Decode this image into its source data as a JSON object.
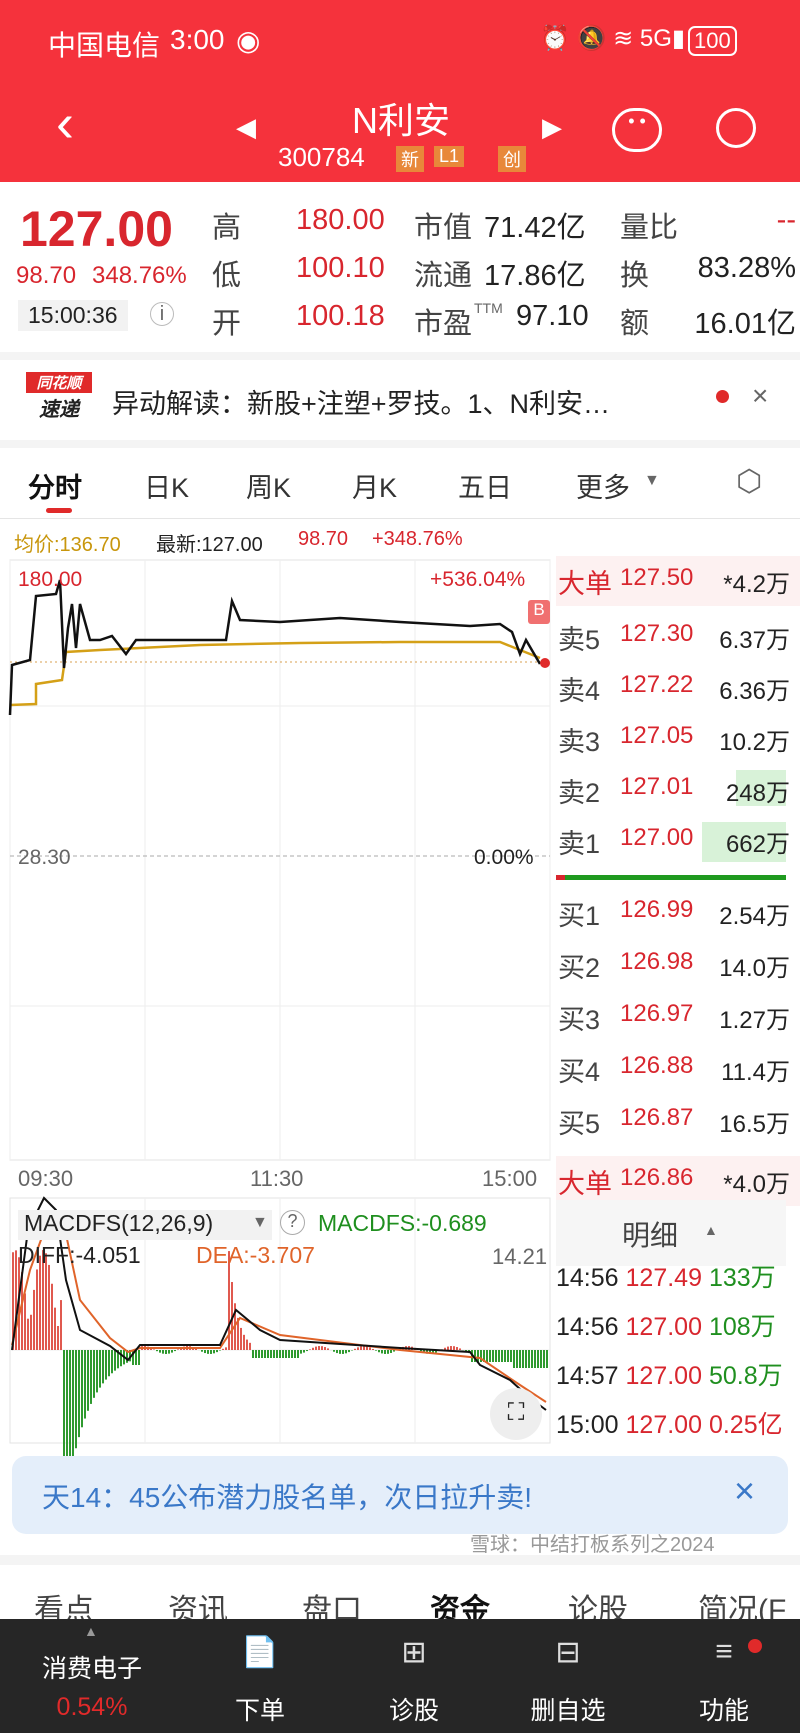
{
  "status": {
    "carrier": "中国电信",
    "time": "3:00",
    "battery": "100"
  },
  "header": {
    "name": "N利安",
    "code": "300784",
    "badges": [
      "新",
      "L1",
      "创"
    ]
  },
  "quote": {
    "price": "127.00",
    "change": "98.70",
    "change_pct": "348.76%",
    "time": "15:00:36",
    "rows": [
      {
        "l1": "高",
        "v1": "180.00",
        "l2": "市值",
        "v2": "71.42亿",
        "l3": "量比",
        "v3": "--"
      },
      {
        "l1": "低",
        "v1": "100.10",
        "l2": "流通",
        "v2": "17.86亿",
        "l3": "换",
        "v3": "83.28%"
      },
      {
        "l1": "开",
        "v1": "100.18",
        "l2": "市盈",
        "sup": "TTM",
        "v2": "97.10",
        "l3": "额",
        "v3": "16.01亿"
      }
    ]
  },
  "news": {
    "logo_top": "同花顺",
    "logo_bottom": "速递",
    "text": "异动解读：新股+注塑+罗技。1、N利安…"
  },
  "tabs": [
    "分时",
    "日K",
    "周K",
    "月K",
    "五日",
    "更多"
  ],
  "chart_info": {
    "avg": "均价:136.70",
    "latest": "最新:127.00",
    "chg": "98.70",
    "pct": "+348.76%"
  },
  "chart": {
    "top_price": "180.00",
    "top_pct": "+536.04%",
    "base_price": "28.30",
    "base_pct": "0.00%",
    "times": [
      "09:30",
      "11:30",
      "15:00"
    ],
    "marker": "B",
    "colors": {
      "price": "#111111",
      "avg": "#d4a017"
    }
  },
  "orderbook": {
    "big_top": {
      "label": "大单",
      "price": "127.50",
      "vol": "*4.2万"
    },
    "asks": [
      {
        "l": "卖5",
        "p": "127.30",
        "v": "6.37万"
      },
      {
        "l": "卖4",
        "p": "127.22",
        "v": "6.36万"
      },
      {
        "l": "卖3",
        "p": "127.05",
        "v": "10.2万"
      },
      {
        "l": "卖2",
        "p": "127.01",
        "v": "248万"
      },
      {
        "l": "卖1",
        "p": "127.00",
        "v": "662万"
      }
    ],
    "bids": [
      {
        "l": "买1",
        "p": "126.99",
        "v": "2.54万"
      },
      {
        "l": "买2",
        "p": "126.98",
        "v": "14.0万"
      },
      {
        "l": "买3",
        "p": "126.97",
        "v": "1.27万"
      },
      {
        "l": "买4",
        "p": "126.88",
        "v": "11.4万"
      },
      {
        "l": "买5",
        "p": "126.87",
        "v": "16.5万"
      }
    ],
    "big_bottom": {
      "label": "大单",
      "price": "126.86",
      "vol": "*4.0万"
    }
  },
  "macd": {
    "name": "MACDFS(12,26,9)",
    "macdfs": "MACDFS:-0.689",
    "diff": "DIFF:-4.051",
    "dea": "DEA:-3.707",
    "top": "14.21"
  },
  "detail": {
    "title": "明细",
    "rows": [
      {
        "t": "14:56",
        "p": "127.49",
        "v": "133万"
      },
      {
        "t": "14:56",
        "p": "127.00",
        "v": "108万"
      },
      {
        "t": "14:57",
        "p": "127.00",
        "v": "50.8万"
      },
      {
        "t": "15:00",
        "p": "127.00",
        "v": "0.25亿"
      }
    ]
  },
  "banner": {
    "text": "天14：45公布潜力股名单，次日拉升卖!"
  },
  "bottom_tabs": [
    "看点",
    "资讯",
    "盘口",
    "资金",
    "论股",
    "简况(F"
  ],
  "bottom_bar": {
    "sector": "消费电子",
    "sector_pct": "0.54%",
    "items": [
      "下单",
      "诊股",
      "删自选",
      "功能"
    ]
  },
  "watermark": "雪球：中结打板系列之2024"
}
